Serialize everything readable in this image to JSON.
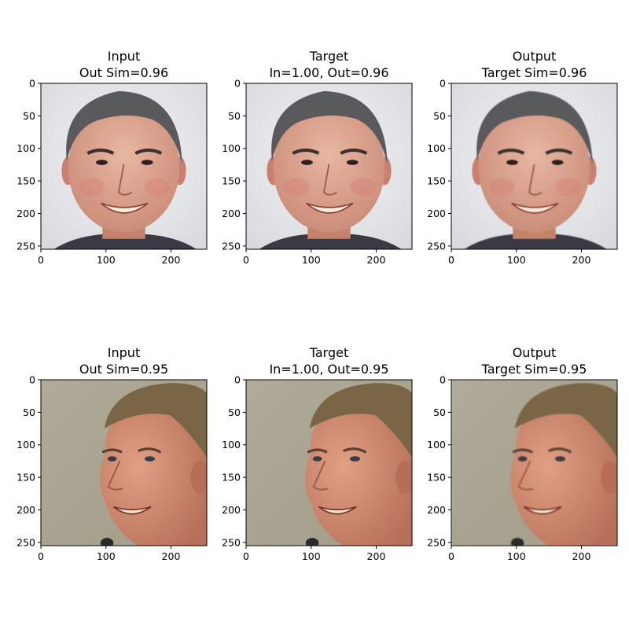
{
  "chart_data": {
    "type": "image-grid",
    "panels": [
      {
        "row": 0,
        "col": 0,
        "title_line1": "Input",
        "title_line2": "Out Sim=0.96",
        "image": "face-1-input",
        "xlim": [
          0,
          255
        ],
        "ylim": [
          255,
          0
        ],
        "xticks": [
          0,
          100,
          200
        ],
        "yticks": [
          0,
          50,
          100,
          150,
          200,
          250
        ]
      },
      {
        "row": 0,
        "col": 1,
        "title_line1": "Target",
        "title_line2": "In=1.00, Out=0.96",
        "image": "face-1-target",
        "xlim": [
          0,
          255
        ],
        "ylim": [
          255,
          0
        ],
        "xticks": [
          0,
          100,
          200
        ],
        "yticks": [
          0,
          50,
          100,
          150,
          200,
          250
        ]
      },
      {
        "row": 0,
        "col": 2,
        "title_line1": "Output",
        "title_line2": "Target Sim=0.96",
        "image": "face-1-output",
        "xlim": [
          0,
          255
        ],
        "ylim": [
          255,
          0
        ],
        "xticks": [
          0,
          100,
          200
        ],
        "yticks": [
          0,
          50,
          100,
          150,
          200,
          250
        ]
      },
      {
        "row": 1,
        "col": 0,
        "title_line1": "Input",
        "title_line2": "Out Sim=0.95",
        "image": "face-2-input",
        "xlim": [
          0,
          255
        ],
        "ylim": [
          255,
          0
        ],
        "xticks": [
          0,
          100,
          200
        ],
        "yticks": [
          0,
          50,
          100,
          150,
          200,
          250
        ]
      },
      {
        "row": 1,
        "col": 1,
        "title_line1": "Target",
        "title_line2": "In=1.00, Out=0.95",
        "image": "face-2-target",
        "xlim": [
          0,
          255
        ],
        "ylim": [
          255,
          0
        ],
        "xticks": [
          0,
          100,
          200
        ],
        "yticks": [
          0,
          50,
          100,
          150,
          200,
          250
        ]
      },
      {
        "row": 1,
        "col": 2,
        "title_line1": "Output",
        "title_line2": "Target Sim=0.95",
        "image": "face-2-output",
        "xlim": [
          0,
          255
        ],
        "ylim": [
          255,
          0
        ],
        "xticks": [
          0,
          100,
          200
        ],
        "yticks": [
          0,
          50,
          100,
          150,
          200,
          250
        ]
      }
    ]
  },
  "colors": {
    "face1_bg": "#e4e6ea",
    "face1_hair": "#5a5a5c",
    "face1_skin": "#d9a28c",
    "face1_shirt": "#3a3a44",
    "face2_bg": "#a9a391",
    "face2_hair": "#7a6646",
    "face2_skin": "#cf8c6e",
    "face2_shirt": "#2a2a2a"
  }
}
